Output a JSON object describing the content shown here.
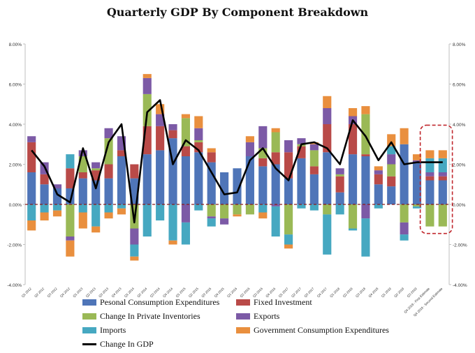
{
  "chart_data": {
    "type": "bar",
    "title": "Quarterly GDP By Component Breakdown",
    "stacked": true,
    "ylim": [
      -4,
      8
    ],
    "yticks": [
      -4,
      -2,
      0,
      2,
      4,
      6,
      8
    ],
    "ytick_labels": [
      "-4.00%",
      "-2.00%",
      "0.00%",
      "2.00%",
      "4.00%",
      "6.00%",
      "8.00%"
    ],
    "categories": [
      "Q1 2012",
      "Q2 2012",
      "Q3 2012",
      "Q4 2012",
      "Q1 2013",
      "Q2 2013",
      "Q3 2013",
      "Q4 2013",
      "Q1 2014",
      "Q2 2014",
      "Q3 2014",
      "Q4 2014",
      "Q1 2015",
      "Q2 2015",
      "Q3 2015",
      "Q4 2015",
      "Q1 2016",
      "Q2 2016",
      "Q3 2016",
      "Q4 2016",
      "Q1 2017",
      "Q2 2017",
      "Q3 2017",
      "Q4 2017",
      "Q1 2018",
      "Q2 2018",
      "Q3 2018",
      "Q4 2018",
      "Q1 2019",
      "Q2 2019",
      "Q3 2019",
      "Q4 2019 - First Estimate",
      "Q4 2019 - Second Estimate"
    ],
    "series": [
      {
        "name": "Pesonal Consumption Expenditures",
        "color": "#4f75b8",
        "values": [
          1.6,
          1.0,
          0.8,
          0.8,
          1.3,
          1.2,
          1.3,
          2.4,
          1.3,
          2.5,
          2.7,
          3.3,
          2.4,
          2.6,
          2.1,
          1.6,
          1.8,
          2.4,
          1.9,
          2.0,
          1.3,
          2.3,
          1.5,
          2.6,
          0.6,
          2.5,
          2.4,
          1.0,
          0.9,
          3.0,
          2.1,
          1.2,
          1.2
        ]
      },
      {
        "name": "Fixed Investment",
        "color": "#b94a48",
        "values": [
          1.5,
          0.5,
          0.0,
          1.0,
          0.3,
          0.5,
          0.7,
          0.3,
          0.7,
          1.4,
          1.2,
          0.4,
          0.5,
          0.5,
          0.5,
          0.0,
          0.0,
          0.0,
          0.4,
          0.6,
          1.3,
          0.6,
          0.4,
          1.4,
          0.8,
          1.5,
          0.1,
          0.5,
          0.5,
          0.0,
          0.0,
          0.2,
          0.2
        ]
      },
      {
        "name": "Change In Private Inventories",
        "color": "#9ab956",
        "values": [
          0.0,
          0.0,
          0.0,
          -1.6,
          0.8,
          0.1,
          1.3,
          0.0,
          -1.2,
          1.6,
          0.0,
          0.0,
          1.4,
          0.1,
          -0.6,
          -0.7,
          -0.5,
          -0.5,
          0.5,
          1.0,
          -1.5,
          0.1,
          0.8,
          -0.5,
          0.1,
          -1.2,
          2.0,
          0.0,
          0.6,
          -0.9,
          -0.1,
          -1.1,
          -1.1
        ]
      },
      {
        "name": "Exports",
        "color": "#7c5aa6",
        "values": [
          0.3,
          0.6,
          0.2,
          -0.2,
          0.3,
          0.3,
          0.5,
          0.7,
          -0.8,
          0.8,
          0.6,
          0.3,
          -0.9,
          0.6,
          -0.1,
          -0.3,
          0.0,
          0.7,
          1.1,
          -0.1,
          0.6,
          0.3,
          0.3,
          0.8,
          0.3,
          0.4,
          -0.7,
          0.2,
          0.5,
          -0.6,
          0.1,
          0.2,
          0.2
        ]
      },
      {
        "name": "Imports",
        "color": "#46a8c1",
        "values": [
          -0.8,
          -0.4,
          -0.3,
          0.7,
          -0.4,
          -1.1,
          -0.4,
          -0.2,
          -0.6,
          -1.6,
          -0.8,
          -1.8,
          -1.1,
          -0.3,
          -0.4,
          0.0,
          0.0,
          0.0,
          -0.4,
          -1.5,
          -0.5,
          -0.2,
          -0.3,
          -2.0,
          -0.5,
          -0.1,
          -1.9,
          -0.2,
          0.4,
          -0.3,
          -0.1,
          0.7,
          0.7
        ]
      },
      {
        "name": "Government Consumption Expenditures",
        "color": "#e98f3e",
        "values": [
          -0.5,
          -0.4,
          -0.3,
          -0.8,
          -0.8,
          -0.3,
          -0.3,
          -0.3,
          -0.2,
          0.2,
          0.5,
          -0.2,
          0.2,
          0.6,
          0.2,
          0.0,
          -0.1,
          0.3,
          -0.3,
          0.2,
          -0.2,
          0.0,
          0.1,
          0.6,
          0.0,
          0.4,
          0.4,
          0.2,
          0.6,
          0.8,
          0.3,
          0.4,
          0.4
        ]
      }
    ],
    "line": {
      "name": "Change In GDP",
      "color": "#000000",
      "values": [
        2.7,
        1.9,
        0.5,
        0.1,
        2.8,
        0.8,
        3.1,
        4.0,
        -0.9,
        4.6,
        5.2,
        2.0,
        3.2,
        2.7,
        1.6,
        0.5,
        0.6,
        2.2,
        2.8,
        1.8,
        1.2,
        3.0,
        3.1,
        2.8,
        2.0,
        4.2,
        3.4,
        2.2,
        3.1,
        2.0,
        2.1,
        2.1,
        2.1
      ]
    },
    "highlight": {
      "from_index": 31,
      "to_index": 32,
      "style": "dashed-rounded-red"
    }
  }
}
